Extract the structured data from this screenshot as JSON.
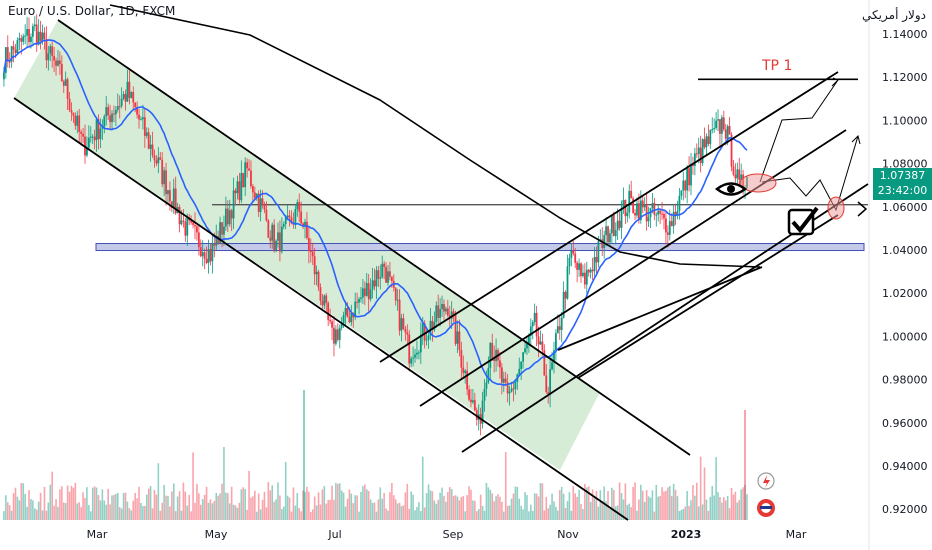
{
  "header": {
    "symbol_title": "Euro / U.S. Dollar, 1D, FXCM",
    "currency_label": "دولار أمريكي"
  },
  "price_badge": {
    "price": "1.07387",
    "countdown": "23:42:00",
    "color": "#089981"
  },
  "colors": {
    "up": "#089981",
    "down": "#f23645",
    "ma_fast": "#2962ff",
    "ma_slow": "#000000",
    "channel_fill": "#c8e6c9",
    "zone_fill": "#c5cae9",
    "zone_stroke": "#3f51b5",
    "target": "#e53935"
  },
  "annotations": {
    "tp1_label": "TP 1"
  },
  "icons": [
    "eye-icon",
    "checkmark-icon",
    "arrow-right-icon",
    "flash-icon",
    "us-flag-icon"
  ],
  "chart_data": {
    "type": "candlestick",
    "title": "Euro / U.S. Dollar, 1D, FXCM",
    "xlabel": "",
    "ylabel": "",
    "x_ticks": [
      "Mar",
      "May",
      "Jul",
      "Sep",
      "Nov",
      "2023",
      "Mar"
    ],
    "y_ticks": [
      "1.14000",
      "1.12000",
      "1.10000",
      "1.08000",
      "1.06000",
      "1.04000",
      "1.02000",
      "1.00000",
      "0.98000",
      "0.96000",
      "0.94000",
      "0.92000"
    ],
    "ylim": [
      0.915,
      1.15
    ],
    "x_range": [
      "2022-01-24",
      "2023-04-05"
    ],
    "last_price": 1.07387,
    "price_path": [
      {
        "date": "2022-01-25",
        "close": 1.128
      },
      {
        "date": "2022-02-10",
        "close": 1.142
      },
      {
        "date": "2022-02-25",
        "close": 1.118
      },
      {
        "date": "2022-03-07",
        "close": 1.088
      },
      {
        "date": "2022-03-30",
        "close": 1.113
      },
      {
        "date": "2022-04-28",
        "close": 1.052
      },
      {
        "date": "2022-05-12",
        "close": 1.038
      },
      {
        "date": "2022-05-31",
        "close": 1.077
      },
      {
        "date": "2022-06-15",
        "close": 1.042
      },
      {
        "date": "2022-06-27",
        "close": 1.059
      },
      {
        "date": "2022-07-14",
        "close": 0.999
      },
      {
        "date": "2022-08-10",
        "close": 1.033
      },
      {
        "date": "2022-08-23",
        "close": 0.993
      },
      {
        "date": "2022-09-12",
        "close": 1.015
      },
      {
        "date": "2022-09-28",
        "close": 0.958
      },
      {
        "date": "2022-10-04",
        "close": 0.998
      },
      {
        "date": "2022-10-13",
        "close": 0.97
      },
      {
        "date": "2022-10-27",
        "close": 1.005
      },
      {
        "date": "2022-11-03",
        "close": 0.975
      },
      {
        "date": "2022-11-15",
        "close": 1.038
      },
      {
        "date": "2022-11-21",
        "close": 1.025
      },
      {
        "date": "2022-12-05",
        "close": 1.05
      },
      {
        "date": "2022-12-15",
        "close": 1.062
      },
      {
        "date": "2023-01-05",
        "close": 1.052
      },
      {
        "date": "2023-01-17",
        "close": 1.08
      },
      {
        "date": "2023-02-02",
        "close": 1.1
      },
      {
        "date": "2023-02-10",
        "close": 1.068
      },
      {
        "date": "2023-02-14",
        "close": 1.07387
      }
    ],
    "series": [
      {
        "name": "",
        "type": "moving-average",
        "color": "#2962ff"
      },
      {
        "name": "",
        "type": "moving-average",
        "color": "#000000"
      }
    ],
    "levels": [
      {
        "price": 1.061,
        "label": ""
      },
      {
        "price": 1.04,
        "label": ""
      },
      {
        "price": 1.119,
        "label": "TP 1"
      }
    ],
    "grid": false,
    "legend": "none"
  }
}
